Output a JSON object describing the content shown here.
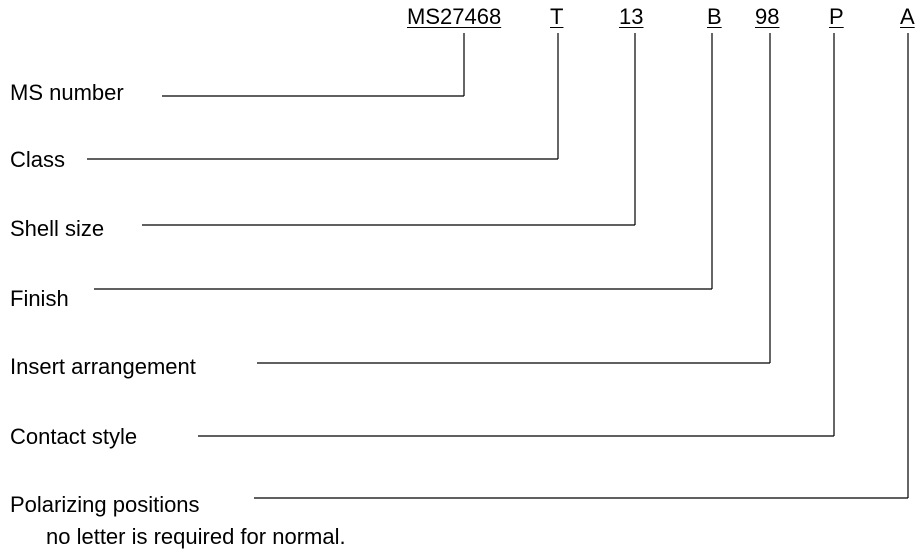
{
  "part_number": {
    "segments": [
      {
        "id": "ms",
        "text": "MS27468"
      },
      {
        "id": "class",
        "text": "T"
      },
      {
        "id": "shell",
        "text": "13"
      },
      {
        "id": "finish",
        "text": "B"
      },
      {
        "id": "insert",
        "text": "98"
      },
      {
        "id": "contact",
        "text": "P"
      },
      {
        "id": "polar",
        "text": "A"
      }
    ]
  },
  "fields": [
    {
      "id": "ms",
      "label": "MS number"
    },
    {
      "id": "class",
      "label": "Class"
    },
    {
      "id": "shell",
      "label": "Shell size"
    },
    {
      "id": "finish",
      "label": "Finish"
    },
    {
      "id": "insert",
      "label": "Insert arrangement"
    },
    {
      "id": "contact",
      "label": "Contact style"
    },
    {
      "id": "polar",
      "label": "Polarizing positions"
    }
  ],
  "note": "no letter is required for normal."
}
